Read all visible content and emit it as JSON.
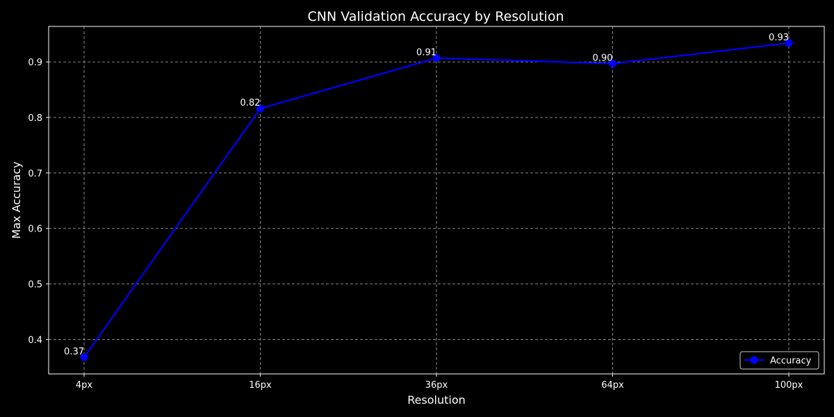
{
  "chart_data": {
    "type": "line",
    "title": "CNN Validation Accuracy by Resolution",
    "xlabel": "Resolution",
    "ylabel": "Max Accuracy",
    "categories": [
      "4px",
      "16px",
      "36px",
      "64px",
      "100px"
    ],
    "series": [
      {
        "name": "Accuracy",
        "values": [
          0.368,
          0.816,
          0.907,
          0.897,
          0.934
        ],
        "labels": [
          "0.37",
          "0.82",
          "0.91",
          "0.90",
          "0.93"
        ],
        "color": "#0000ff",
        "marker": "circle"
      }
    ],
    "yticks": [
      "0.4",
      "0.5",
      "0.6",
      "0.7",
      "0.8",
      "0.9"
    ],
    "ylim": [
      0.338,
      0.964
    ],
    "grid": true,
    "legend": "lower-right",
    "colors": {
      "background": "#000000",
      "axes": "#ffffff",
      "grid": "#b0b0b0",
      "text": "#ffffff"
    }
  }
}
